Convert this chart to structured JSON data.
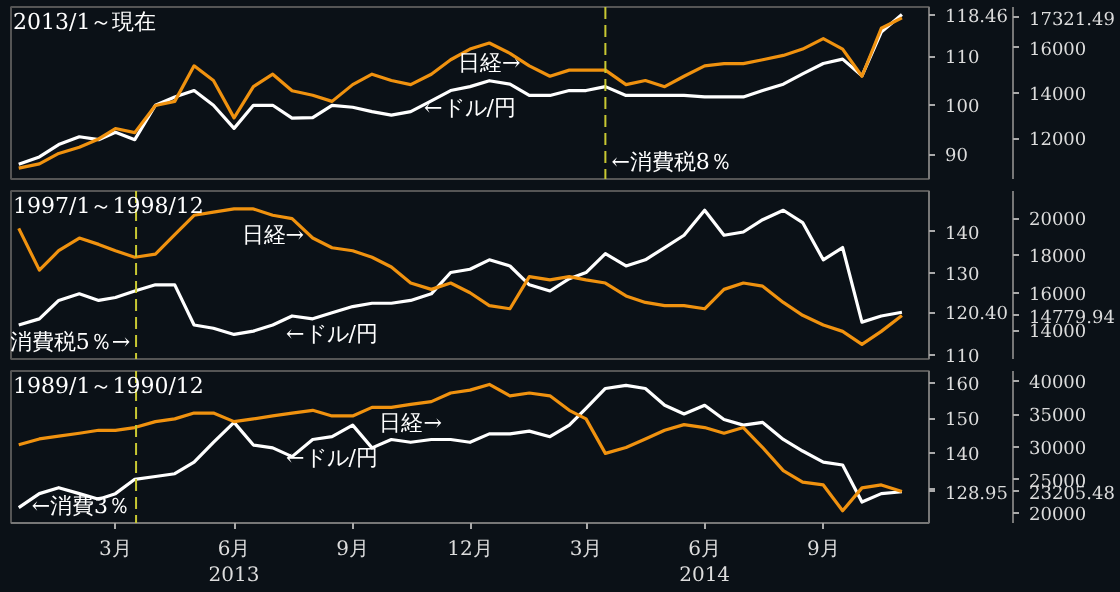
{
  "chart_data": [
    {
      "type": "line",
      "title": "2013/1～現在",
      "tick_labels": "y",
      "x": [
        "2012-12-16",
        "2013-01-01",
        "2013-01-16",
        "2013-02-01",
        "2013-02-16",
        "2013-03-01",
        "2013-03-16",
        "2013-04-01",
        "2013-04-16",
        "2013-05-01",
        "2013-05-16",
        "2013-06-01",
        "2013-06-16",
        "2013-07-01",
        "2013-07-16",
        "2013-08-01",
        "2013-08-16",
        "2013-09-01",
        "2013-09-16",
        "2013-10-01",
        "2013-10-16",
        "2013-11-01",
        "2013-11-16",
        "2013-12-01",
        "2013-12-16",
        "2014-01-01",
        "2014-01-16",
        "2014-02-01",
        "2014-02-16",
        "2014-03-01",
        "2014-03-16",
        "2014-04-01",
        "2014-04-16",
        "2014-05-01",
        "2014-05-16",
        "2014-06-01",
        "2014-06-16",
        "2014-07-01",
        "2014-07-16",
        "2014-08-01",
        "2014-08-16",
        "2014-09-01",
        "2014-09-16",
        "2014-10-01",
        "2014-10-16",
        "2014-11-01"
      ],
      "xlim": [
        "2012-12-10",
        "2014-11-22"
      ],
      "ylim": [
        85,
        120
      ],
      "yticks": [
        90,
        100,
        110,
        {
          "value": 118.46,
          "label": "118.46"
        }
      ],
      "y2lim": [
        10200,
        17800
      ],
      "y2ticks": [
        12000,
        14000,
        16000,
        {
          "value": 17321.49,
          "label": "17321.49"
        }
      ],
      "series": [
        {
          "color": "#ffffff",
          "values": [
            88,
            89.5,
            92,
            93.6,
            93,
            94.5,
            93,
            100,
            101.7,
            103,
            100,
            95.3,
            100,
            100,
            97.4,
            97.5,
            100,
            99.6,
            98.7,
            98,
            98.7,
            100.9,
            103,
            103.8,
            105,
            104.3,
            102,
            102,
            103,
            103,
            103.8,
            102,
            102,
            102,
            102,
            101.7,
            101.7,
            101.7,
            103,
            104.3,
            106.4,
            108.5,
            109.4,
            106,
            114.9,
            118.46
          ]
        },
        {
          "color": "#f0920f",
          "axis": "y2",
          "values": [
            10680,
            10870,
            11330,
            11600,
            11970,
            12430,
            12250,
            13450,
            13630,
            15200,
            14550,
            12900,
            14280,
            14830,
            14100,
            13900,
            13630,
            14370,
            14830,
            14550,
            14370,
            14830,
            15470,
            15940,
            16210,
            15750,
            15200,
            14740,
            15010,
            15010,
            15010,
            14370,
            14550,
            14280,
            14740,
            15200,
            15300,
            15300,
            15470,
            15660,
            15940,
            16400,
            15940,
            14740,
            16860,
            17321.49
          ]
        }
      ],
      "ref_lines": [
        {
          "axis": "x",
          "value": "2014-03-16",
          "color": "#c8c832",
          "line_style": "dashed",
          "label": "←消費税8％"
        }
      ],
      "annotations": [
        {
          "text": "日経→",
          "x": "2013-12-16",
          "y": 112.8
        },
        {
          "text": "←ドル/円",
          "x": "2013-12-01",
          "y": 103.8
        }
      ]
    },
    {
      "type": "line",
      "title": "1997/1～1998/12",
      "tick_labels": "y",
      "x": [
        "2012-12-16",
        "2013-01-01",
        "2013-01-16",
        "2013-02-01",
        "2013-02-16",
        "2013-03-01",
        "2013-03-16",
        "2013-04-01",
        "2013-04-16",
        "2013-05-01",
        "2013-05-16",
        "2013-06-01",
        "2013-06-16",
        "2013-07-01",
        "2013-07-16",
        "2013-08-01",
        "2013-08-16",
        "2013-09-01",
        "2013-09-16",
        "2013-10-01",
        "2013-10-16",
        "2013-11-01",
        "2013-11-16",
        "2013-12-01",
        "2013-12-16",
        "2014-01-01",
        "2014-01-16",
        "2014-02-01",
        "2014-02-16",
        "2014-03-01",
        "2014-03-16",
        "2014-04-01",
        "2014-04-16",
        "2014-05-01",
        "2014-05-16",
        "2014-06-01",
        "2014-06-16",
        "2014-07-01",
        "2014-07-16",
        "2014-08-01",
        "2014-08-16",
        "2014-09-01",
        "2014-09-16",
        "2014-10-01",
        "2014-10-16",
        "2014-11-01"
      ],
      "xlim": [
        "2012-12-10",
        "2014-11-22"
      ],
      "ylim": [
        109,
        150
      ],
      "yticks": [
        110,
        {
          "value": 120,
          "label": null
        },
        {
          "value": 120.4,
          "label": "120.40"
        },
        130,
        140
      ],
      "y2lim": [
        12450,
        21450
      ],
      "y2ticks": [
        14000,
        16000,
        18000,
        20000,
        {
          "value": 14779.94,
          "label": "14779.94"
        }
      ],
      "series": [
        {
          "color": "#ffffff",
          "values": [
            117.3,
            118.8,
            123.3,
            124.9,
            123.3,
            124,
            125.6,
            127.1,
            127.1,
            117.3,
            116.5,
            115,
            115.8,
            117.3,
            119.5,
            118.8,
            120.3,
            121.8,
            122.6,
            122.6,
            123.3,
            124.9,
            130.1,
            130.9,
            133.2,
            131.7,
            127.1,
            125.6,
            128.6,
            130.1,
            134.7,
            131.7,
            133.2,
            136.2,
            139.2,
            145.3,
            139.2,
            140,
            143,
            145.3,
            142.3,
            133.2,
            136.2,
            118,
            119.5,
            120.4
          ]
        },
        {
          "color": "#f0920f",
          "axis": "y2",
          "values": [
            19450,
            17210,
            18250,
            18930,
            18590,
            18250,
            17900,
            18070,
            19110,
            20150,
            20320,
            20490,
            20490,
            20150,
            19970,
            18930,
            18410,
            18250,
            17900,
            17380,
            16520,
            16180,
            16520,
            16000,
            15310,
            15140,
            16860,
            16690,
            16860,
            16690,
            16520,
            15830,
            15480,
            15310,
            15310,
            15140,
            16180,
            16520,
            16350,
            15480,
            14790,
            14270,
            13930,
            13230,
            13930,
            14779.94
          ]
        }
      ],
      "ref_lines": [
        {
          "axis": "x",
          "value": "2013-03-17",
          "color": "#c8c832",
          "line_style": "dashed",
          "label": "消費税5％→"
        }
      ],
      "annotations": [
        {
          "text": "日経→",
          "x": "2013-07-01",
          "y": 144.5
        },
        {
          "text": "←ドル/円",
          "x": "2013-08-16",
          "y": 120.3
        }
      ]
    },
    {
      "type": "line",
      "title": "1989/1～1990/12",
      "x": [
        "2012-12-16",
        "2013-01-01",
        "2013-01-16",
        "2013-02-01",
        "2013-02-16",
        "2013-03-01",
        "2013-03-16",
        "2013-04-01",
        "2013-04-16",
        "2013-05-01",
        "2013-05-16",
        "2013-06-01",
        "2013-06-16",
        "2013-07-01",
        "2013-07-16",
        "2013-08-01",
        "2013-08-16",
        "2013-09-01",
        "2013-09-16",
        "2013-10-01",
        "2013-10-16",
        "2013-11-01",
        "2013-11-16",
        "2013-12-01",
        "2013-12-16",
        "2014-01-01",
        "2014-01-16",
        "2014-02-01",
        "2014-02-16",
        "2014-03-01",
        "2014-03-16",
        "2014-04-01",
        "2014-04-16",
        "2014-05-01",
        "2014-05-16",
        "2014-06-01",
        "2014-06-16",
        "2014-07-01",
        "2014-07-16",
        "2014-08-01",
        "2014-08-16",
        "2014-09-01",
        "2014-09-16",
        "2014-10-01",
        "2014-10-16",
        "2014-11-01"
      ],
      "xlim": [
        "2012-12-10",
        "2014-11-22"
      ],
      "xticks": [
        {
          "value": "2013-03-01",
          "label": "3月"
        },
        {
          "value": "2013-06-01",
          "label": "6月\n2013"
        },
        {
          "value": "2013-09-01",
          "label": "9月"
        },
        {
          "value": "2013-12-01",
          "label": "12月"
        },
        {
          "value": "2014-03-01",
          "label": "3月"
        },
        {
          "value": "2014-06-01",
          "label": "6月\n2014"
        },
        {
          "value": "2014-09-01",
          "label": "9月"
        }
      ],
      "ylim": [
        120,
        163.5
      ],
      "yticks": [
        {
          "value": 130,
          "label": null
        },
        {
          "value": 128.95,
          "label": "128.95"
        },
        140,
        150,
        160
      ],
      "y2lim": [
        18400,
        41600
      ],
      "y2ticks": [
        20000,
        25000,
        30000,
        35000,
        40000,
        {
          "value": 23205.48,
          "label": "23205.48"
        }
      ],
      "series": [
        {
          "color": "#ffffff",
          "values": [
            124.4,
            128.4,
            130.1,
            128.4,
            126.8,
            128.4,
            132.5,
            133.3,
            134.1,
            137.4,
            143.1,
            148.8,
            142.3,
            141.5,
            139,
            143.9,
            144.7,
            148,
            141.5,
            143.9,
            143.1,
            143.9,
            143.9,
            143.1,
            145.5,
            145.5,
            146.3,
            144.7,
            148,
            152.8,
            158.5,
            159.4,
            158.5,
            153.7,
            151.2,
            153.7,
            149.6,
            148,
            148.8,
            143.9,
            140.6,
            137.4,
            136.6,
            126,
            128.4,
            128.95
          ]
        },
        {
          "color": "#f0920f",
          "axis": "y2",
          "values": [
            30340,
            31230,
            31660,
            32100,
            32550,
            32550,
            32970,
            33870,
            34290,
            35180,
            35180,
            33870,
            34290,
            34740,
            35180,
            35600,
            34740,
            34740,
            36050,
            36050,
            36500,
            36920,
            38240,
            38680,
            39550,
            37810,
            38240,
            37810,
            35600,
            34290,
            29030,
            29920,
            31230,
            32550,
            33420,
            32970,
            32100,
            32970,
            29920,
            26400,
            24650,
            24210,
            20260,
            23760,
            24210,
            23205.48
          ]
        }
      ],
      "ref_lines": [
        {
          "axis": "x",
          "value": "2013-03-17",
          "color": "#c8c832",
          "line_style": "dashed",
          "label": "←消費3％"
        }
      ],
      "annotations": [
        {
          "text": "日経→",
          "x": "2013-10-16",
          "y": 154.5
        },
        {
          "text": "←ドル/円",
          "x": "2013-08-16",
          "y": 144.7
        }
      ]
    }
  ]
}
